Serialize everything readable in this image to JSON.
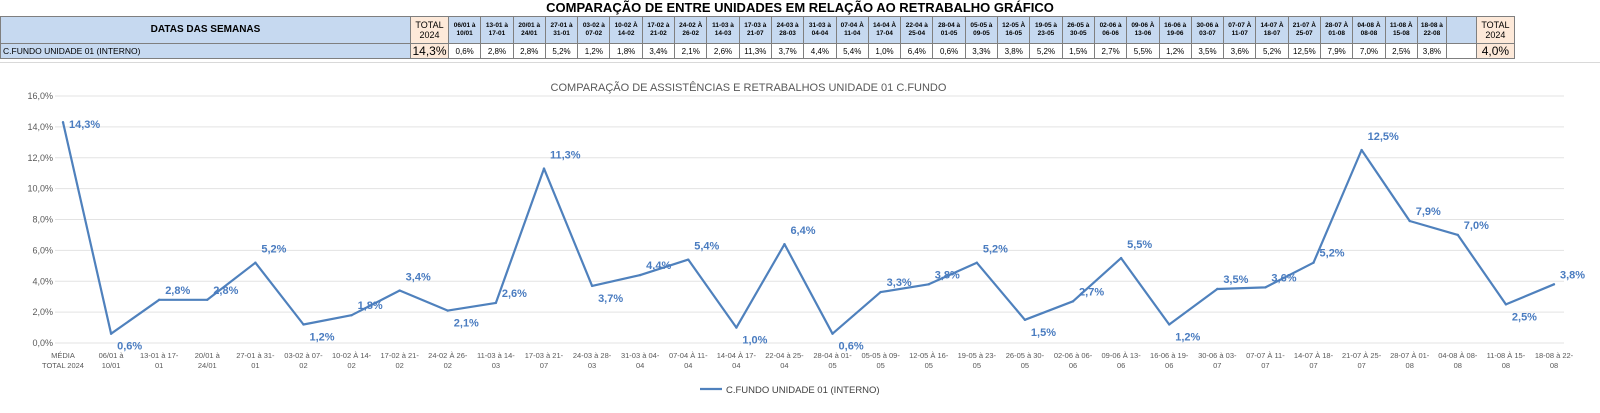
{
  "title": "COMPARAÇÃO DE ENTRE UNIDADES EM RELAÇÃO AO RETRABALHO GRÁFICO",
  "table": {
    "header_label": "DATAS DAS SEMANAS",
    "total_header": "TOTAL 2024",
    "row_label": "C.FUNDO UNIDADE 01 (INTERNO)",
    "total_first": "14,3%",
    "total_last": "4,0%",
    "weeks": [
      "06/01 à 10/01",
      "13-01 à 17-01",
      "20/01 à 24/01",
      "27-01 à 31-01",
      "03-02 à 07-02",
      "10-02 À 14-02",
      "17-02 à 21-02",
      "24-02 À 26-02",
      "11-03 à 14-03",
      "17-03 à 21-07",
      "24-03 à 28-03",
      "31-03 à 04-04",
      "07-04 À 11-04",
      "14-04 À 17-04",
      "22-04 à 25-04",
      "28-04 à 01-05",
      "05-05 à 09-05",
      "12-05 À 16-05",
      "19-05 à 23-05",
      "26-05 à 30-05",
      "02-06 à 06-06",
      "09-06 À 13-06",
      "16-06 à 19-06",
      "30-06 à 03-07",
      "07-07 À 11-07",
      "14-07 À 18-07",
      "21-07 À 25-07",
      "28-07 À 01-08",
      "04-08 À 08-08",
      "11-08 À 15-08",
      "18-08 à 22-08"
    ],
    "values": [
      "0,6%",
      "2,8%",
      "2,8%",
      "5,2%",
      "1,2%",
      "1,8%",
      "3,4%",
      "2,1%",
      "2,6%",
      "11,3%",
      "3,7%",
      "4,4%",
      "5,4%",
      "1,0%",
      "6,4%",
      "0,6%",
      "3,3%",
      "3,8%",
      "5,2%",
      "1,5%",
      "2,7%",
      "5,5%",
      "1,2%",
      "3,5%",
      "3,6%",
      "5,2%",
      "12,5%",
      "7,9%",
      "7,0%",
      "2,5%",
      "3,8%"
    ]
  },
  "chart_data": {
    "type": "line",
    "title": "COMPARAÇÃO DE ASSISTÊNCIAS E RETRABALHOS UNIDADE 01 C.FUNDO",
    "categories": [
      [
        "MÉDIA",
        "TOTAL 2024"
      ],
      [
        "06/01 à",
        "10/01"
      ],
      [
        "13-01 à 17-",
        "01"
      ],
      [
        "20/01 à",
        "24/01"
      ],
      [
        "27-01 à 31-",
        "01"
      ],
      [
        "03-02 à 07-",
        "02"
      ],
      [
        "10-02 À 14-",
        "02"
      ],
      [
        "17-02 à 21-",
        "02"
      ],
      [
        "24-02 À 26-",
        "02"
      ],
      [
        "11-03 à 14-",
        "03"
      ],
      [
        "17-03 à 21-",
        "07"
      ],
      [
        "24-03 à 28-",
        "03"
      ],
      [
        "31-03 à 04-",
        "04"
      ],
      [
        "07-04 À 11-",
        "04"
      ],
      [
        "14-04 À 17-",
        "04"
      ],
      [
        "22-04 à 25-",
        "04"
      ],
      [
        "28-04 à 01-",
        "05"
      ],
      [
        "05-05 à 09-",
        "05"
      ],
      [
        "12-05 À 16-",
        "05"
      ],
      [
        "19-05 à 23-",
        "05"
      ],
      [
        "26-05 à 30-",
        "05"
      ],
      [
        "02-06 à 06-",
        "06"
      ],
      [
        "09-06 À 13-",
        "06"
      ],
      [
        "16-06 à 19-",
        "06"
      ],
      [
        "30-06 à 03-",
        "07"
      ],
      [
        "07-07 À 11-",
        "07"
      ],
      [
        "14-07 À 18-",
        "07"
      ],
      [
        "21-07 À 25-",
        "07"
      ],
      [
        "28-07 À 01-",
        "08"
      ],
      [
        "04-08 À 08-",
        "08"
      ],
      [
        "11-08 À 15-",
        "08"
      ],
      [
        "18-08 à 22-",
        "08"
      ]
    ],
    "series": [
      {
        "name": "C.FUNDO UNIDADE 01 (INTERNO)",
        "values": [
          14.3,
          0.6,
          2.8,
          2.8,
          5.2,
          1.2,
          1.8,
          3.4,
          2.1,
          2.6,
          11.3,
          3.7,
          4.4,
          5.4,
          1.0,
          6.4,
          0.6,
          3.3,
          3.8,
          5.2,
          1.5,
          2.7,
          5.5,
          1.2,
          3.5,
          3.6,
          5.2,
          12.5,
          7.9,
          7.0,
          2.5,
          3.8
        ],
        "labels": [
          "14,3%",
          "0,6%",
          "2,8%",
          "2,8%",
          "5,2%",
          "1,2%",
          "1,8%",
          "3,4%",
          "2,1%",
          "2,6%",
          "11,3%",
          "3,7%",
          "4,4%",
          "5,4%",
          "1,0%",
          "6,4%",
          "0,6%",
          "3,3%",
          "3,8%",
          "5,2%",
          "1,5%",
          "2,7%",
          "5,5%",
          "1,2%",
          "3,5%",
          "3,6%",
          "5,2%",
          "12,5%",
          "7,9%",
          "7,0%",
          "2,5%",
          "3,8%"
        ]
      }
    ],
    "ylim": [
      0,
      16
    ],
    "yticks": [
      "0,0%",
      "2,0%",
      "4,0%",
      "6,0%",
      "8,0%",
      "10,0%",
      "12,0%",
      "14,0%",
      "16,0%"
    ],
    "grid": true,
    "legend": "bottom",
    "line_color": "#4f81bd",
    "label_color": "#4a7cc0"
  }
}
